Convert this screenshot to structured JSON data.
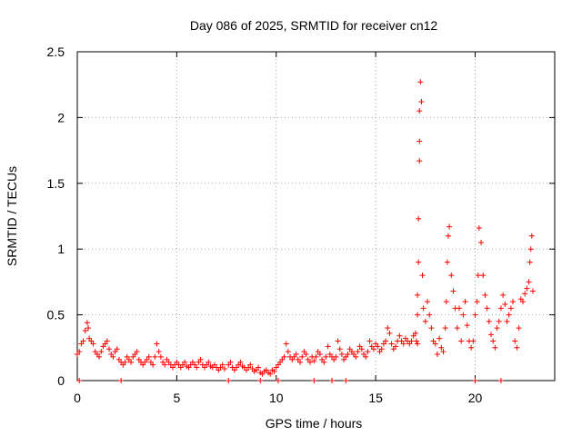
{
  "chart_data": {
    "type": "scatter",
    "title": "Day 086 of 2025, SRMTID for receiver cn12",
    "xlabel": "GPS time / hours",
    "ylabel": "SRMTID / TECUs",
    "xlim": [
      0,
      24
    ],
    "ylim": [
      0,
      2.5
    ],
    "xticks": [
      0,
      5,
      10,
      15,
      20
    ],
    "xtick_labels": [
      "0",
      "5",
      "10",
      "15",
      "20"
    ],
    "yticks": [
      0,
      0.5,
      1,
      1.5,
      2,
      2.5
    ],
    "ytick_labels": [
      "0",
      "0.5",
      "1",
      "1.5",
      "2",
      "2.5"
    ],
    "grid": true,
    "marker": "+",
    "color": "#ff0000",
    "series": [
      {
        "name": "SRMTID",
        "x": [
          0.0,
          0.1,
          0.2,
          0.3,
          0.4,
          0.5,
          0.55,
          0.6,
          0.7,
          0.8,
          0.9,
          1.0,
          1.1,
          1.2,
          1.3,
          1.4,
          1.5,
          1.6,
          1.7,
          1.8,
          1.9,
          2.0,
          2.1,
          2.2,
          2.3,
          2.4,
          2.5,
          2.6,
          2.7,
          2.8,
          2.9,
          3.0,
          3.1,
          3.2,
          3.3,
          3.4,
          3.5,
          3.6,
          3.7,
          3.8,
          3.9,
          4.0,
          4.1,
          4.2,
          4.3,
          4.4,
          4.5,
          4.6,
          4.7,
          4.8,
          4.9,
          5.0,
          5.1,
          5.2,
          5.3,
          5.4,
          5.5,
          5.6,
          5.7,
          5.8,
          5.9,
          6.0,
          6.1,
          6.2,
          6.3,
          6.4,
          6.5,
          6.6,
          6.7,
          6.8,
          6.9,
          7.0,
          7.1,
          7.2,
          7.3,
          7.4,
          7.6,
          7.7,
          7.8,
          7.9,
          8.0,
          8.1,
          8.2,
          8.3,
          8.4,
          8.5,
          8.6,
          8.7,
          8.8,
          8.9,
          9.0,
          9.1,
          9.2,
          9.3,
          9.4,
          9.5,
          9.6,
          9.7,
          9.8,
          9.9,
          10.0,
          10.1,
          10.2,
          10.3,
          10.4,
          10.5,
          10.6,
          10.7,
          10.8,
          10.9,
          11.0,
          11.1,
          11.2,
          11.3,
          11.4,
          11.5,
          11.6,
          11.7,
          11.8,
          11.9,
          12.0,
          12.1,
          12.2,
          12.3,
          12.4,
          12.5,
          12.6,
          12.7,
          12.8,
          12.9,
          13.0,
          13.1,
          13.2,
          13.3,
          13.4,
          13.5,
          13.6,
          13.7,
          13.8,
          13.9,
          14.0,
          14.1,
          14.2,
          14.3,
          14.4,
          14.5,
          14.6,
          14.7,
          14.8,
          14.9,
          15.0,
          15.1,
          15.2,
          15.3,
          15.4,
          15.5,
          15.6,
          15.7,
          15.8,
          15.9,
          16.0,
          16.1,
          16.2,
          16.3,
          16.4,
          16.5,
          16.6,
          16.7,
          16.8,
          16.9,
          17.0,
          17.05,
          17.1,
          17.1,
          17.1,
          17.15,
          17.15,
          17.2,
          17.2,
          17.2,
          17.25,
          17.3,
          17.35,
          17.4,
          17.5,
          17.6,
          17.7,
          17.8,
          17.9,
          18.0,
          18.1,
          18.2,
          18.3,
          18.4,
          18.5,
          18.55,
          18.6,
          18.65,
          18.7,
          18.8,
          18.9,
          19.0,
          19.1,
          19.2,
          19.3,
          19.4,
          19.5,
          19.6,
          19.7,
          19.8,
          19.9,
          20.0,
          20.1,
          20.15,
          20.2,
          20.3,
          20.4,
          20.5,
          20.6,
          20.7,
          20.8,
          20.9,
          21.0,
          21.1,
          21.2,
          21.3,
          21.4,
          21.5,
          21.6,
          21.7,
          21.8,
          21.9,
          22.0,
          22.1,
          22.2,
          22.3,
          22.4,
          22.5,
          22.6,
          22.7,
          22.75,
          22.8,
          22.85,
          22.9,
          0.1,
          2.2,
          7.6,
          9.2,
          10.1,
          11.9,
          12.8,
          13.5,
          20.0,
          21.3
        ],
        "y": [
          0.2,
          0.22,
          0.28,
          0.3,
          0.38,
          0.44,
          0.4,
          0.32,
          0.3,
          0.28,
          0.22,
          0.2,
          0.18,
          0.22,
          0.26,
          0.28,
          0.3,
          0.24,
          0.2,
          0.18,
          0.22,
          0.24,
          0.16,
          0.14,
          0.12,
          0.14,
          0.18,
          0.16,
          0.14,
          0.18,
          0.2,
          0.22,
          0.16,
          0.14,
          0.12,
          0.14,
          0.16,
          0.18,
          0.14,
          0.12,
          0.18,
          0.28,
          0.22,
          0.18,
          0.14,
          0.12,
          0.16,
          0.14,
          0.12,
          0.1,
          0.12,
          0.14,
          0.12,
          0.1,
          0.12,
          0.14,
          0.11,
          0.1,
          0.12,
          0.14,
          0.12,
          0.1,
          0.14,
          0.16,
          0.12,
          0.1,
          0.12,
          0.14,
          0.11,
          0.1,
          0.12,
          0.1,
          0.08,
          0.1,
          0.12,
          0.09,
          0.12,
          0.14,
          0.1,
          0.08,
          0.1,
          0.12,
          0.14,
          0.11,
          0.1,
          0.08,
          0.1,
          0.12,
          0.09,
          0.07,
          0.08,
          0.1,
          0.06,
          0.05,
          0.07,
          0.08,
          0.06,
          0.05,
          0.08,
          0.07,
          0.1,
          0.12,
          0.14,
          0.16,
          0.18,
          0.28,
          0.22,
          0.18,
          0.16,
          0.18,
          0.2,
          0.16,
          0.14,
          0.18,
          0.22,
          0.2,
          0.16,
          0.14,
          0.18,
          0.15,
          0.18,
          0.22,
          0.2,
          0.16,
          0.14,
          0.18,
          0.26,
          0.2,
          0.18,
          0.16,
          0.18,
          0.3,
          0.24,
          0.2,
          0.16,
          0.18,
          0.2,
          0.24,
          0.22,
          0.2,
          0.18,
          0.22,
          0.26,
          0.24,
          0.2,
          0.18,
          0.22,
          0.3,
          0.26,
          0.24,
          0.28,
          0.26,
          0.22,
          0.24,
          0.28,
          0.3,
          0.4,
          0.36,
          0.28,
          0.24,
          0.26,
          0.3,
          0.34,
          0.3,
          0.28,
          0.32,
          0.3,
          0.28,
          0.3,
          0.34,
          0.36,
          0.3,
          0.28,
          0.5,
          0.65,
          0.9,
          1.23,
          1.67,
          1.82,
          2.05,
          2.27,
          2.12,
          0.8,
          0.55,
          0.45,
          0.6,
          0.5,
          0.4,
          0.3,
          0.28,
          0.2,
          0.32,
          0.25,
          0.22,
          0.4,
          0.6,
          0.9,
          1.1,
          1.17,
          0.8,
          0.68,
          0.55,
          0.4,
          0.55,
          0.3,
          0.5,
          0.6,
          0.42,
          0.3,
          0.25,
          0.3,
          0.5,
          0.6,
          0.8,
          1.16,
          1.05,
          0.8,
          0.65,
          0.55,
          0.45,
          0.35,
          0.3,
          0.25,
          0.4,
          0.45,
          0.55,
          0.65,
          0.58,
          0.45,
          0.5,
          0.55,
          0.6,
          0.3,
          0.25,
          0.4,
          0.62,
          0.6,
          0.66,
          0.7,
          0.75,
          0.9,
          1.0,
          1.1,
          0.68,
          0.0,
          0.0,
          0.0,
          0.0,
          0.0,
          0.0,
          0.0,
          0.0,
          0.0,
          0.0
        ]
      }
    ]
  }
}
